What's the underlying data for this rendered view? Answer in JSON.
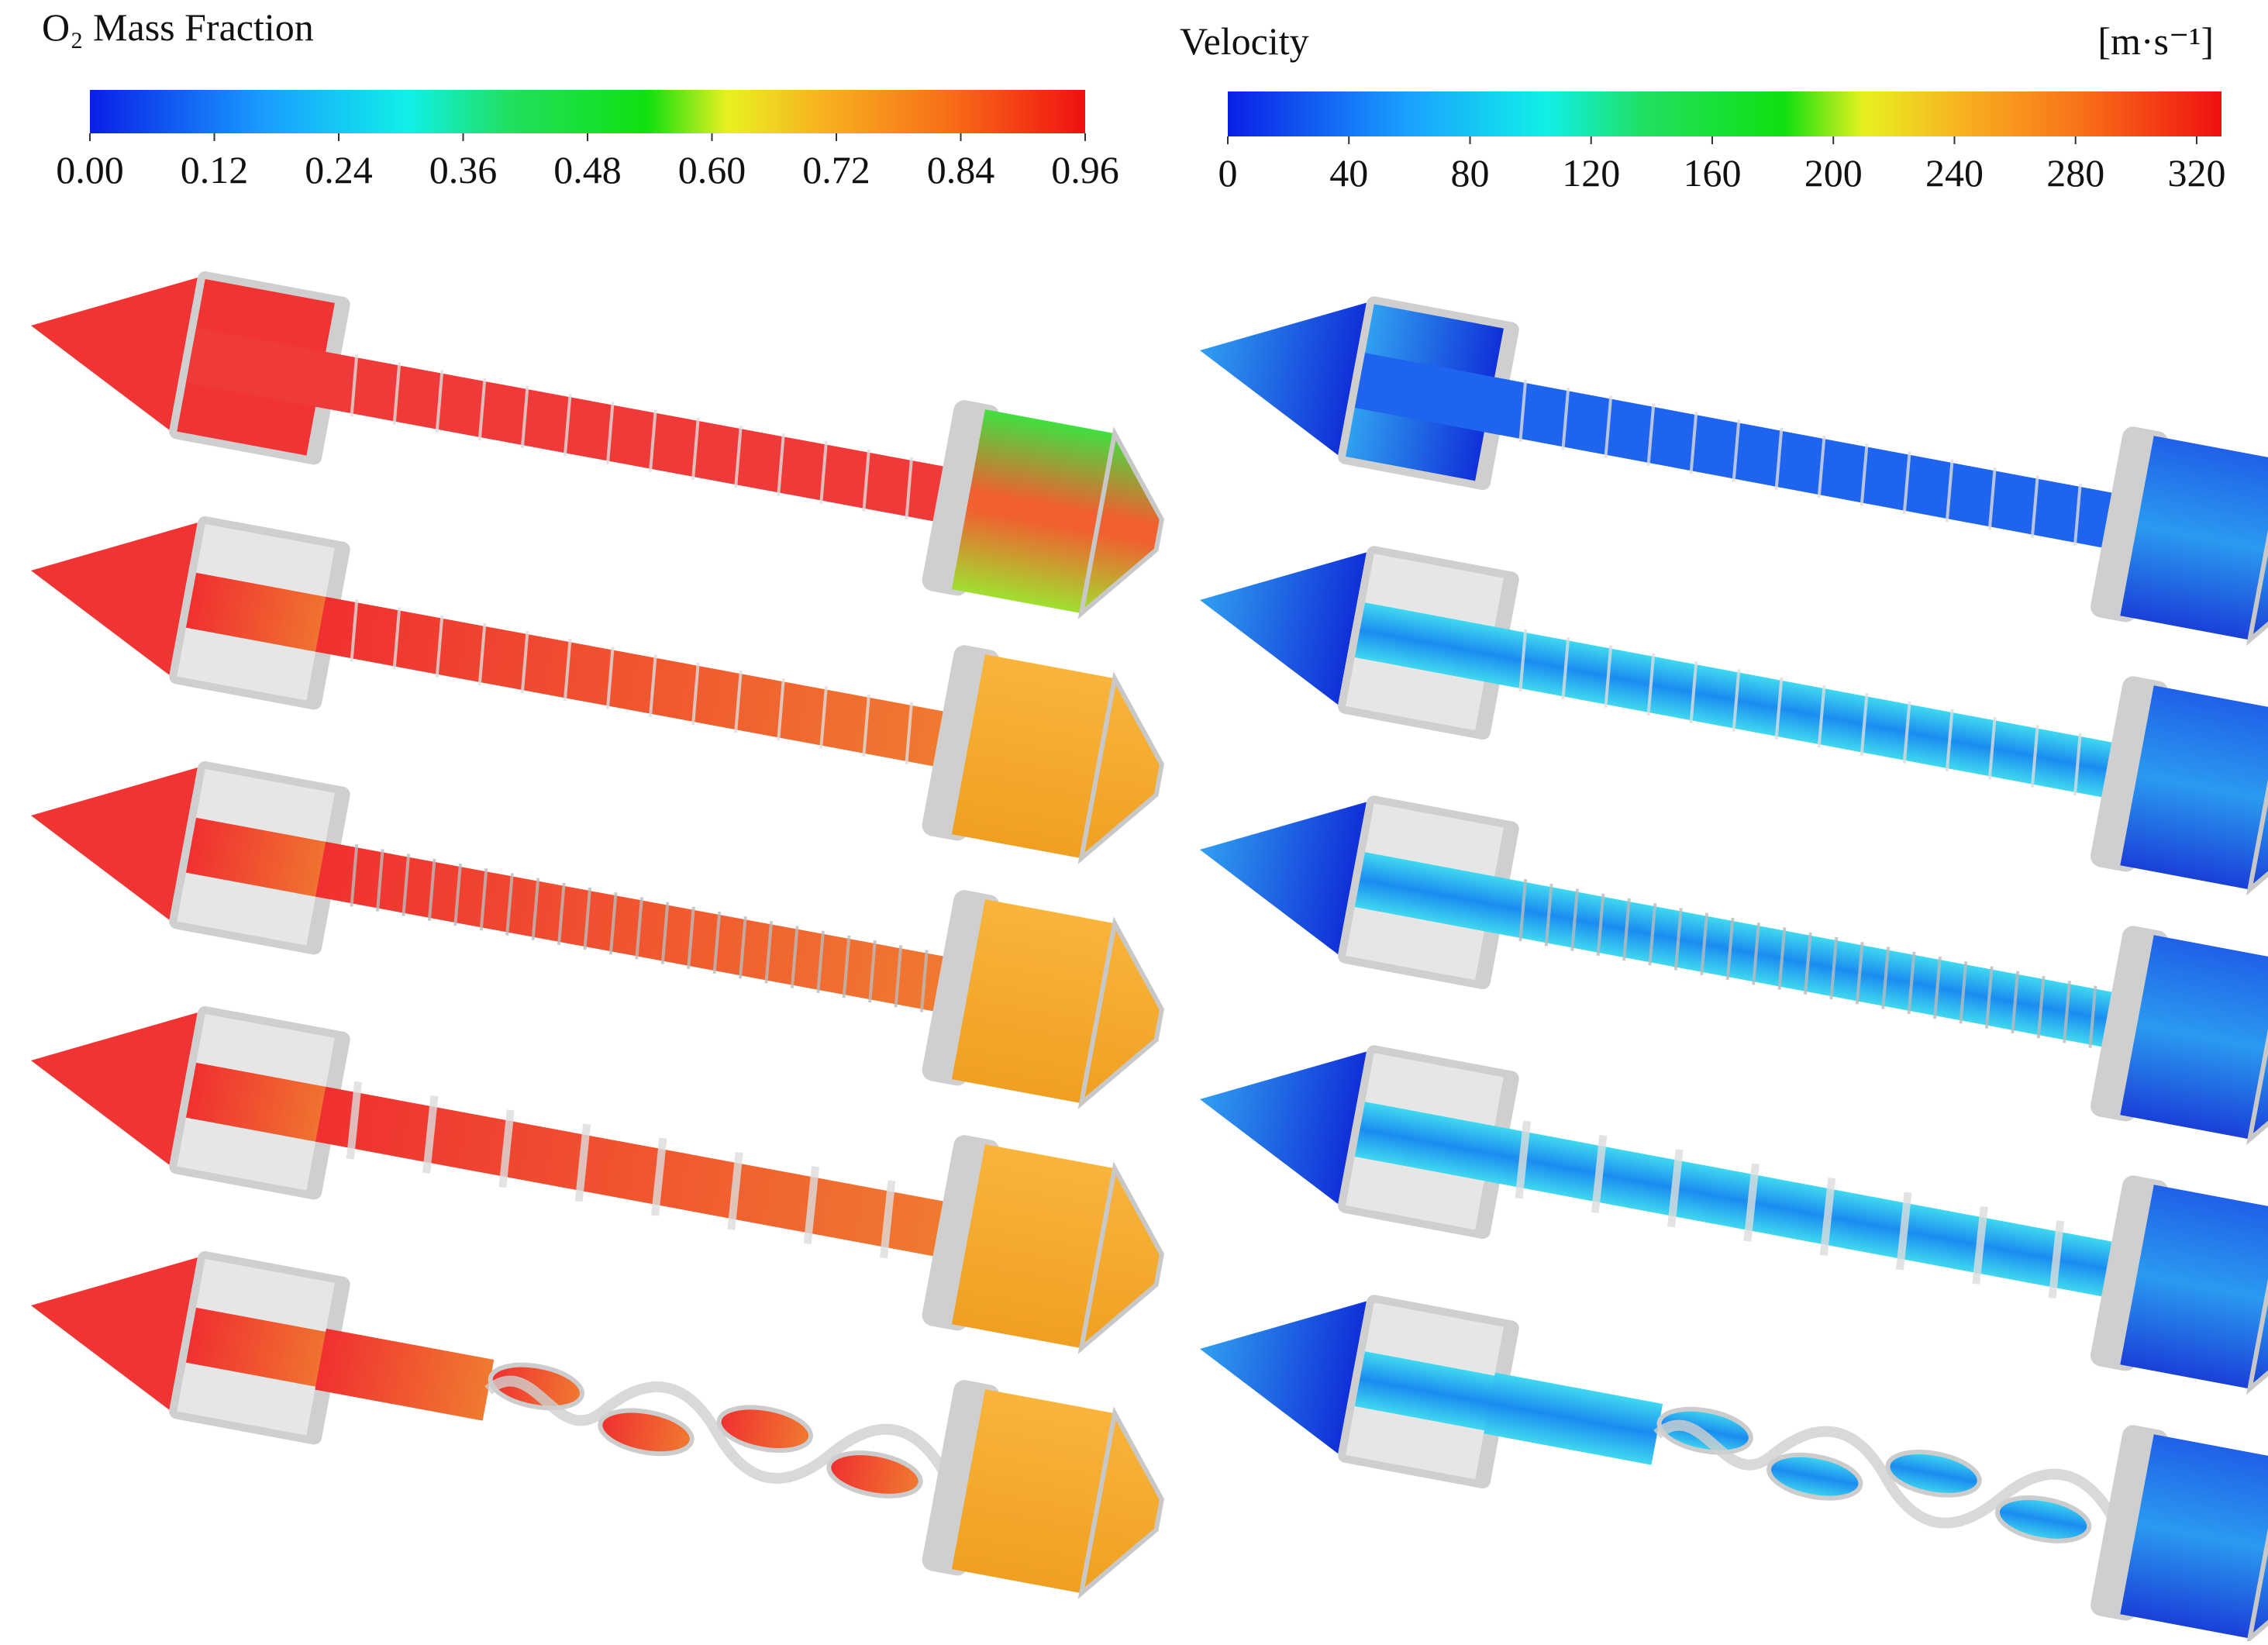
{
  "colorbars": [
    {
      "title": "O₂ Mass Fraction",
      "ticks": [
        "0.00",
        "0.12",
        "0.24",
        "0.36",
        "0.48",
        "0.60",
        "0.72",
        "0.84",
        "0.96"
      ]
    },
    {
      "title": "Velocity",
      "unit": "[m·s⁻¹]",
      "ticks": [
        "0",
        "40",
        "80",
        "120",
        "160",
        "200",
        "240",
        "280",
        "320"
      ]
    }
  ]
}
